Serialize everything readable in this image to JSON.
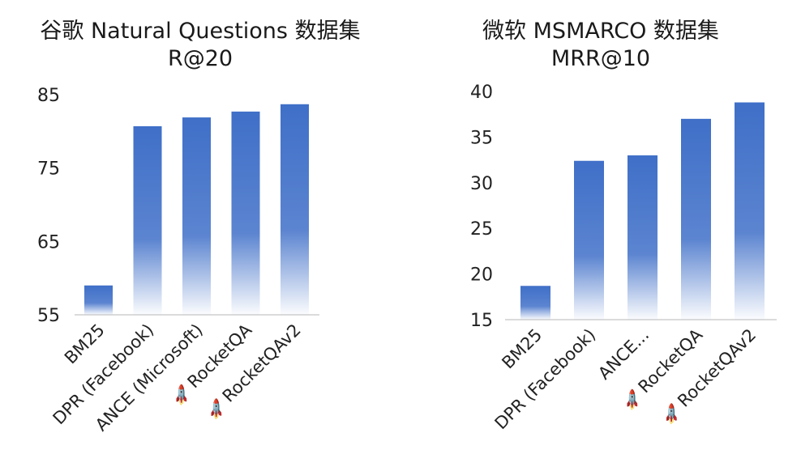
{
  "chart_data": [
    {
      "type": "bar",
      "title": "谷歌 Natural Questions 数据集",
      "subtitle": "R@20",
      "categories": [
        "BM25",
        "DPR (Facebook)",
        "ANCE (Microsoft)",
        "RocketQA",
        "RocketQAv2"
      ],
      "category_icons": [
        "",
        "",
        "",
        "rocket",
        "rocket"
      ],
      "values": [
        59,
        80.7,
        81.9,
        82.7,
        83.7
      ],
      "ylim": [
        55,
        85
      ],
      "yticks": [
        55,
        65,
        75,
        85
      ],
      "xlabel": "",
      "ylabel": "",
      "grid": false,
      "bar_color": "#3f6fc8"
    },
    {
      "type": "bar",
      "title": "微软 MSMARCO 数据集",
      "subtitle": "MRR@10",
      "categories": [
        "BM25",
        "DPR (Facebook)",
        "ANCE...",
        "RocketQA",
        "RocketQAv2"
      ],
      "category_icons": [
        "",
        "",
        "",
        "rocket",
        "rocket"
      ],
      "values": [
        18.7,
        32.4,
        33,
        37,
        38.8
      ],
      "ylim": [
        15,
        40
      ],
      "yticks": [
        15,
        20,
        25,
        30,
        35,
        40
      ],
      "xlabel": "",
      "ylabel": "",
      "grid": false,
      "bar_color": "#3f6fc8"
    }
  ]
}
